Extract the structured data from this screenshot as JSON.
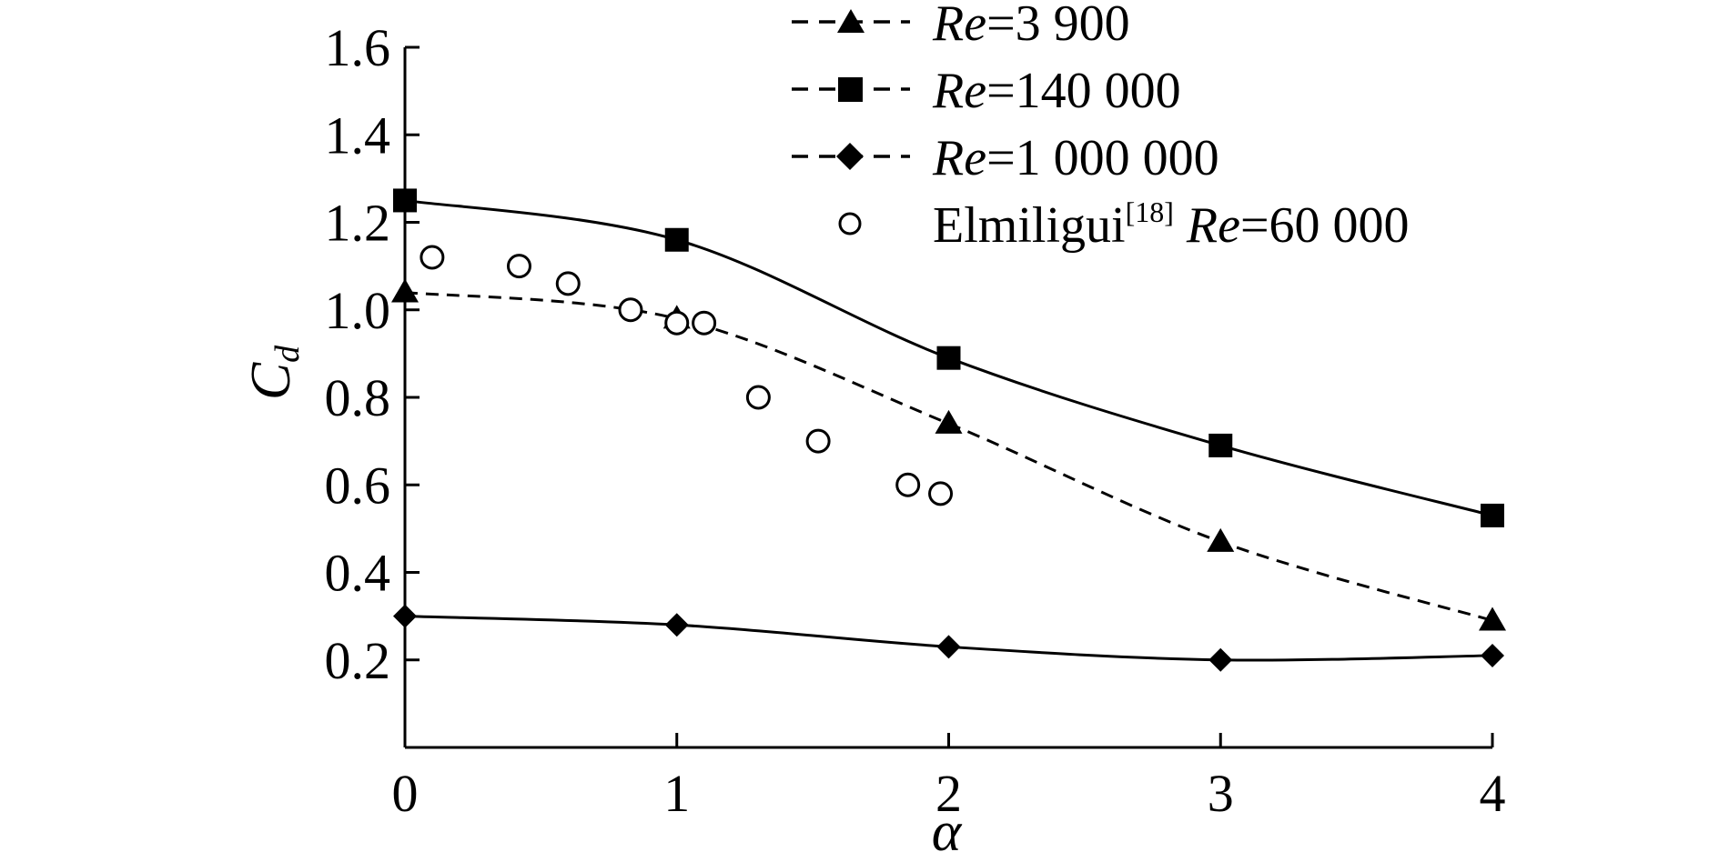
{
  "chart_data": {
    "type": "line",
    "title": "",
    "xlabel": "α",
    "ylabel": "C_d",
    "ylabel_main": "C",
    "ylabel_sub": "d",
    "xlim": [
      0,
      4
    ],
    "ylim": [
      0,
      1.6
    ],
    "xticks": [
      0,
      1,
      2,
      3,
      4
    ],
    "xtick_labels": [
      "0",
      "1",
      "2",
      "3",
      "4"
    ],
    "yticks": [
      0.2,
      0.4,
      0.6,
      0.8,
      1.0,
      1.2,
      1.4,
      1.6
    ],
    "ytick_labels": [
      "0.2",
      "0.4",
      "0.6",
      "0.8",
      "1.0",
      "1.2",
      "1.4",
      "1.6"
    ],
    "grid": false,
    "legend_position": "top-right",
    "series": [
      {
        "name": "Re=3 900",
        "legend_prefix": "Re",
        "legend_suffix": "=3 900",
        "marker": "triangle",
        "line_style": "dashed",
        "color": "#000000",
        "x": [
          0,
          1,
          2,
          3,
          4
        ],
        "y": [
          1.04,
          0.98,
          0.74,
          0.47,
          0.29
        ]
      },
      {
        "name": "Re=140 000",
        "legend_prefix": "Re",
        "legend_suffix": "=140 000",
        "marker": "square",
        "line_style": "solid",
        "legend_line_style": "dashed",
        "color": "#000000",
        "x": [
          0,
          1,
          2,
          3,
          4
        ],
        "y": [
          1.25,
          1.16,
          0.89,
          0.69,
          0.53
        ]
      },
      {
        "name": "Re=1 000 000",
        "legend_prefix": "Re",
        "legend_suffix": "=1 000 000",
        "marker": "diamond",
        "line_style": "solid",
        "legend_line_style": "dashed",
        "color": "#000000",
        "x": [
          0,
          1,
          2,
          3,
          4
        ],
        "y": [
          0.3,
          0.28,
          0.23,
          0.2,
          0.21
        ]
      },
      {
        "name": "Elmiligui[18] Re=60 000",
        "legend_author": "Elmiligui",
        "legend_ref": "[18]",
        "legend_re_prefix": "Re",
        "legend_re_suffix": "=60 000",
        "marker": "circle-open",
        "line_style": "none",
        "color": "#000000",
        "x": [
          0.1,
          0.42,
          0.6,
          0.83,
          1.0,
          1.1,
          1.3,
          1.52,
          1.85,
          1.97
        ],
        "y": [
          1.12,
          1.1,
          1.06,
          1.0,
          0.97,
          0.97,
          0.8,
          0.7,
          0.6,
          0.58
        ]
      }
    ]
  }
}
